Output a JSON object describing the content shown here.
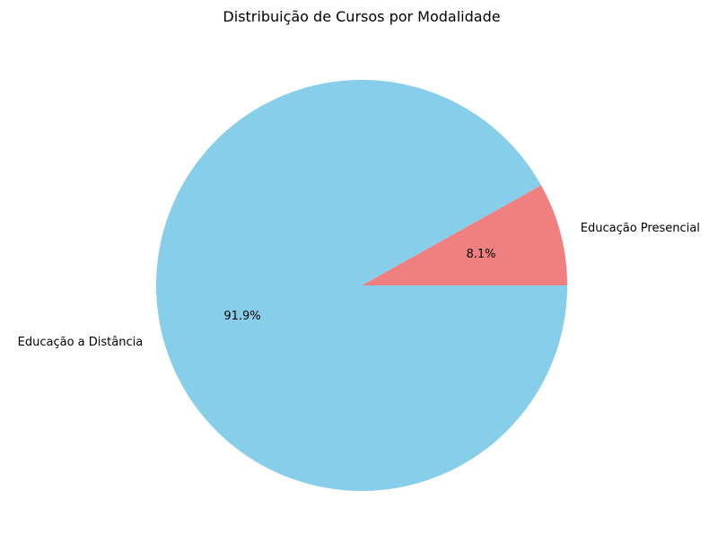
{
  "chart_data": {
    "type": "pie",
    "title": "Distribuição de Cursos por Modalidade",
    "slices": [
      {
        "label": "Educação Presencial",
        "value": 8.1,
        "pct_label": "8.1%",
        "color": "#f08080"
      },
      {
        "label": "Educação a Distância",
        "value": 91.9,
        "pct_label": "91.9%",
        "color": "#87ceeb"
      }
    ],
    "start_angle_deg": 0,
    "direction": "counterclockwise",
    "legend": "none"
  }
}
